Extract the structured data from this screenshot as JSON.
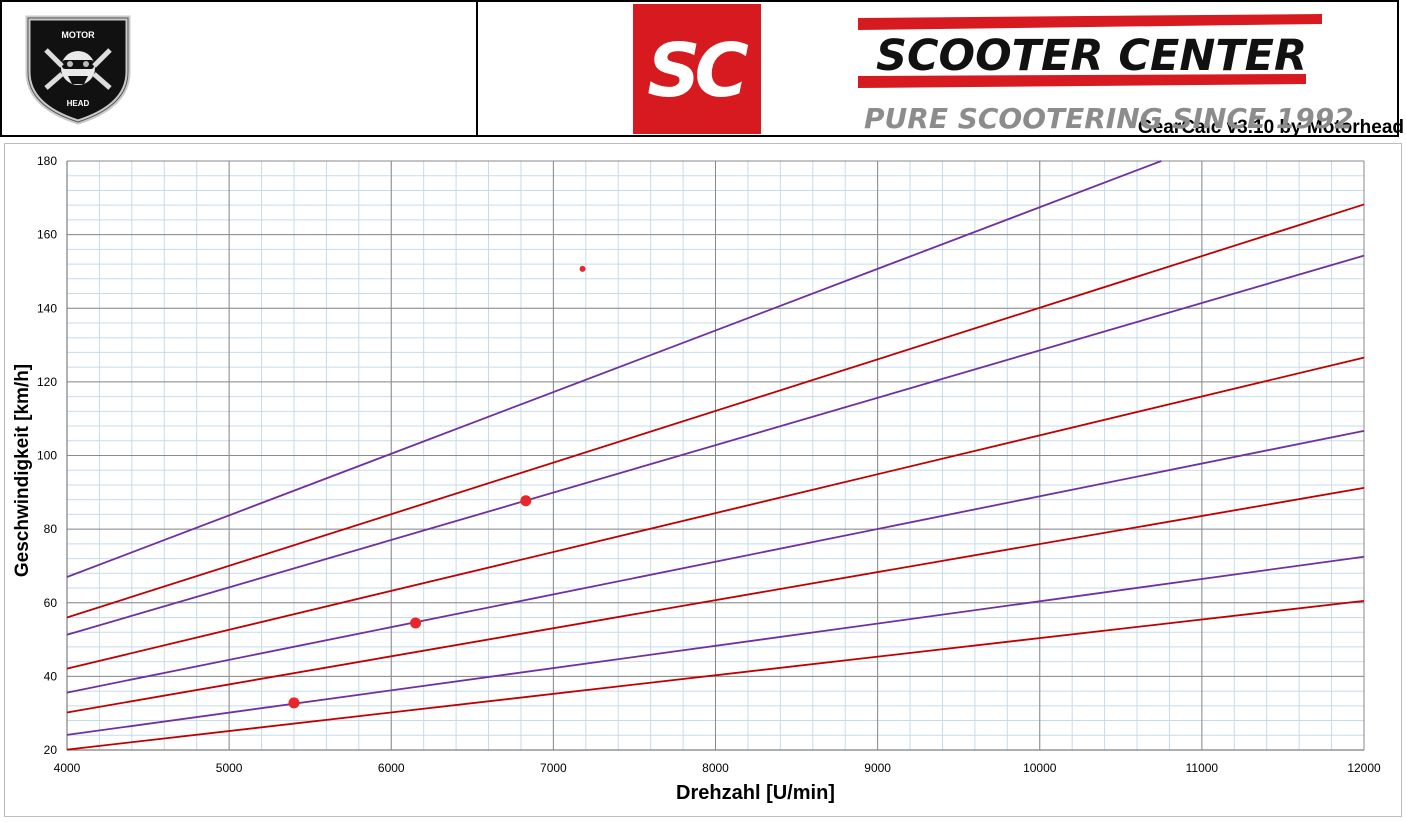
{
  "header": {
    "app_title": "GearCalc v3.10 by Motorhead",
    "motorhead_logo": {
      "top_text": "MOTOR",
      "bottom_text": "HEAD"
    },
    "sc_logo_text": "SC",
    "brand_name": "SCOOTER CENTER",
    "brand_tagline": "PURE SCOOTERING SINCE 1992",
    "colors": {
      "brand_red": "#d71920",
      "tagline_gray": "#8c8c8c"
    }
  },
  "chart_data": {
    "type": "line",
    "xlabel": "Drehzahl [U/min]",
    "ylabel": "Geschwindigkeit [km/h]",
    "xlim": [
      4000,
      12000
    ],
    "ylim": [
      20,
      180
    ],
    "xticks": [
      4000,
      5000,
      6000,
      7000,
      8000,
      9000,
      10000,
      11000,
      12000
    ],
    "yticks": [
      20,
      40,
      60,
      80,
      100,
      120,
      140,
      160,
      180
    ],
    "grid": {
      "major": true,
      "minor": true
    },
    "legend": "none",
    "series": [
      {
        "color": "#c00000",
        "x": [
          4000,
          12000
        ],
        "y": [
          20.1,
          60.5
        ]
      },
      {
        "color": "#7030a0",
        "x": [
          4000,
          12000
        ],
        "y": [
          24.1,
          72.5
        ]
      },
      {
        "color": "#c00000",
        "x": [
          4000,
          12000
        ],
        "y": [
          30.2,
          91.2
        ]
      },
      {
        "color": "#7030a0",
        "x": [
          4000,
          12000
        ],
        "y": [
          35.6,
          106.7
        ]
      },
      {
        "color": "#c00000",
        "x": [
          4000,
          12000
        ],
        "y": [
          42.1,
          126.6
        ]
      },
      {
        "color": "#7030a0",
        "x": [
          4000,
          12000
        ],
        "y": [
          51.3,
          154.3
        ]
      },
      {
        "color": "#c00000",
        "x": [
          4000,
          12000
        ],
        "y": [
          56.0,
          168.2
        ]
      },
      {
        "color": "#7030a0",
        "x": [
          4000,
          10750
        ],
        "y": [
          67.0,
          180.0
        ]
      }
    ],
    "points": [
      {
        "x": 5400,
        "y": 32.8,
        "color": "#e8262b",
        "size": "large"
      },
      {
        "x": 6150,
        "y": 54.5,
        "color": "#e8262b",
        "size": "large"
      },
      {
        "x": 6830,
        "y": 87.7,
        "color": "#e8262b",
        "size": "large"
      },
      {
        "x": 7180,
        "y": 150.7,
        "color": "#e8262b",
        "size": "small"
      }
    ]
  }
}
